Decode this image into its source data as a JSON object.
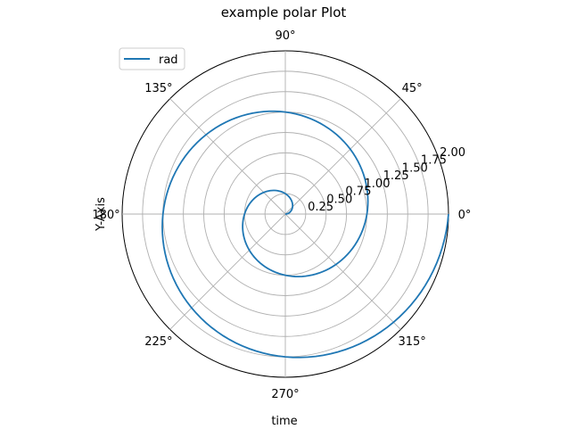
{
  "chart_data": {
    "type": "line",
    "projection": "polar",
    "title": "example polar Plot",
    "xlabel": "time",
    "ylabel": "Y-Axis",
    "angular_ticks": [
      "0°",
      "45°",
      "90°",
      "135°",
      "180°",
      "225°",
      "270°",
      "315°"
    ],
    "angular_tick_degrees": [
      0,
      45,
      90,
      135,
      180,
      225,
      270,
      315
    ],
    "radial_ticks": [
      "0.25",
      "0.50",
      "0.75",
      "1.00",
      "1.25",
      "1.50",
      "1.75",
      "2.00"
    ],
    "radial_tick_values": [
      0.25,
      0.5,
      0.75,
      1.0,
      1.25,
      1.5,
      1.75,
      2.0
    ],
    "rlim": [
      0,
      2.0
    ],
    "grid": true,
    "legend_position": "upper-left",
    "series": [
      {
        "name": "rad",
        "color": "#1f77b4",
        "r_equals_theta_over": 6.2832,
        "r": [
          0.0,
          0.05,
          0.1,
          0.15,
          0.2,
          0.25,
          0.3,
          0.35,
          0.4,
          0.45,
          0.5,
          0.55,
          0.6,
          0.65,
          0.7,
          0.75,
          0.8,
          0.85,
          0.9,
          0.95,
          1.0,
          1.05,
          1.1,
          1.15,
          1.2,
          1.25,
          1.3,
          1.35,
          1.4,
          1.45,
          1.5,
          1.55,
          1.6,
          1.65,
          1.7,
          1.75,
          1.8,
          1.85,
          1.9,
          1.95,
          2.0
        ],
        "theta_deg": [
          0,
          18,
          36,
          54,
          72,
          90,
          108,
          126,
          144,
          162,
          180,
          198,
          216,
          234,
          252,
          270,
          288,
          306,
          324,
          342,
          360,
          378,
          396,
          414,
          432,
          450,
          468,
          486,
          504,
          522,
          540,
          558,
          576,
          594,
          612,
          630,
          648,
          666,
          684,
          702,
          720
        ]
      }
    ]
  },
  "colors": {
    "line": "#1f77b4",
    "grid": "#b0b0b0",
    "frame": "#000000"
  }
}
